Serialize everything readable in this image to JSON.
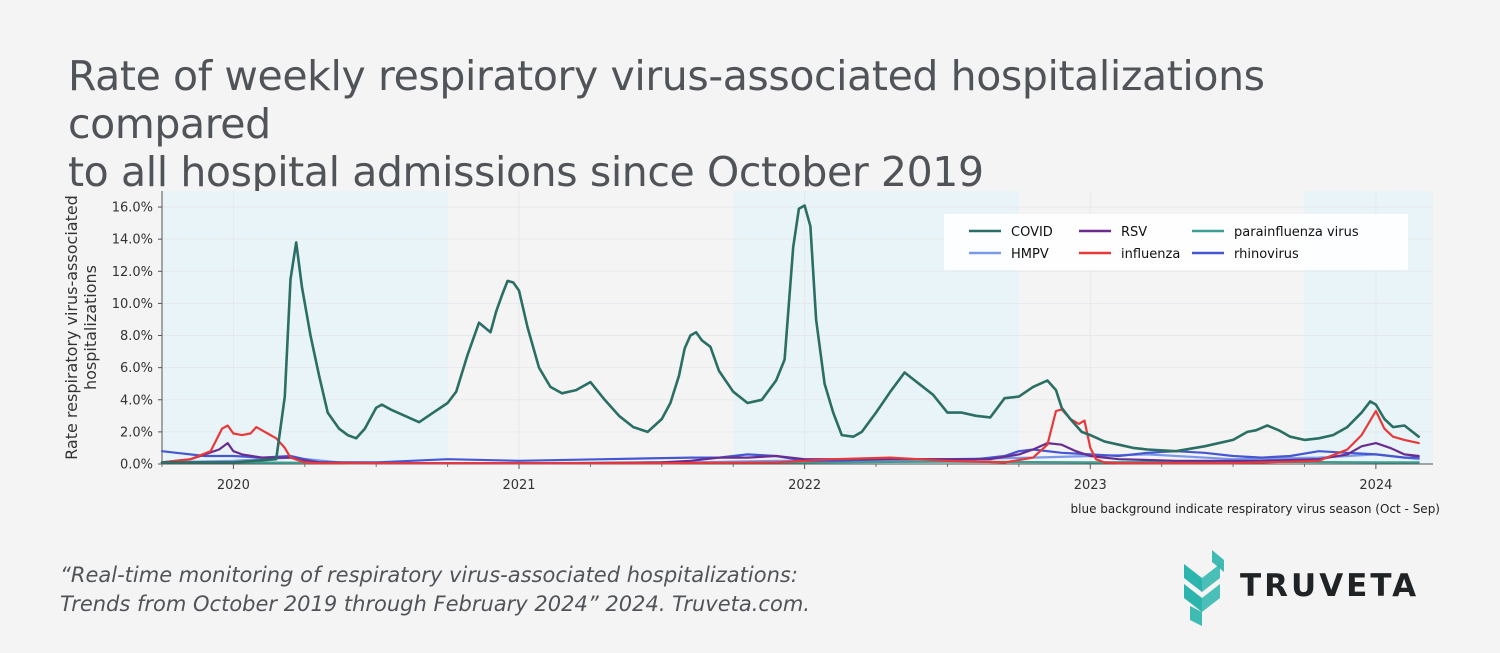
{
  "title": {
    "line1": "Rate of weekly respiratory virus-associated hospitalizations compared",
    "line2": "to all hospital admissions since October 2019"
  },
  "citation": {
    "line1": "“Real-time monitoring of respiratory virus-associated hospitalizations:",
    "line2": "Trends from October 2019 through February 2024” 2024. Truveta.com."
  },
  "logo": {
    "text": "TRUVETA",
    "color": "#2bb5ad"
  },
  "chart_data": {
    "type": "line",
    "title": "Rate of weekly respiratory virus-associated hospitalizations compared to all hospital admissions since October 2019",
    "xlabel": "",
    "ylabel": "Rate respiratory virus-associated hospitalizations",
    "ylabel_lines": [
      "Rate respiratory virus-associated",
      "hospitalizations"
    ],
    "xlim": [
      2019.75,
      2024.2
    ],
    "ylim": [
      0,
      17
    ],
    "x_ticks": [
      2020,
      2021,
      2022,
      2023,
      2024
    ],
    "x_tick_labels": [
      "2020",
      "2021",
      "2022",
      "2023",
      "2024"
    ],
    "y_ticks": [
      0,
      2,
      4,
      6,
      8,
      10,
      12,
      14,
      16
    ],
    "y_tick_labels": [
      "0.0%",
      "2.0%",
      "4.0%",
      "6.0%",
      "8.0%",
      "10.0%",
      "12.0%",
      "14.0%",
      "16.0%"
    ],
    "grid": true,
    "season_shading": [
      [
        2019.75,
        2020.75
      ],
      [
        2021.75,
        2022.75
      ],
      [
        2023.75,
        2024.2
      ]
    ],
    "season_color": "#e9f4f8",
    "season_note": "blue background indicate respiratory virus season (Oct - Sep)",
    "legend_position": "top-right",
    "series": [
      {
        "name": "COVID",
        "color": "#2a6e64",
        "x": [
          2019.75,
          2020.0,
          2020.15,
          2020.18,
          2020.2,
          2020.22,
          2020.24,
          2020.27,
          2020.3,
          2020.33,
          2020.37,
          2020.4,
          2020.43,
          2020.46,
          2020.5,
          2020.52,
          2020.55,
          2020.6,
          2020.65,
          2020.7,
          2020.75,
          2020.78,
          2020.82,
          2020.86,
          2020.9,
          2020.92,
          2020.94,
          2020.96,
          2020.98,
          2021.0,
          2021.03,
          2021.07,
          2021.11,
          2021.15,
          2021.2,
          2021.25,
          2021.3,
          2021.35,
          2021.4,
          2021.45,
          2021.5,
          2021.53,
          2021.56,
          2021.58,
          2021.6,
          2021.62,
          2021.64,
          2021.67,
          2021.7,
          2021.75,
          2021.8,
          2021.85,
          2021.9,
          2021.93,
          2021.96,
          2021.98,
          2022.0,
          2022.02,
          2022.04,
          2022.07,
          2022.1,
          2022.13,
          2022.17,
          2022.2,
          2022.25,
          2022.3,
          2022.35,
          2022.4,
          2022.45,
          2022.5,
          2022.55,
          2022.6,
          2022.65,
          2022.7,
          2022.75,
          2022.8,
          2022.85,
          2022.88,
          2022.9,
          2022.93,
          2022.95,
          2022.97,
          2023.0,
          2023.05,
          2023.1,
          2023.15,
          2023.2,
          2023.3,
          2023.4,
          2023.5,
          2023.55,
          2023.58,
          2023.62,
          2023.66,
          2023.7,
          2023.75,
          2023.8,
          2023.85,
          2023.9,
          2023.95,
          2023.98,
          2024.0,
          2024.03,
          2024.06,
          2024.1,
          2024.15
        ],
        "y": [
          0.1,
          0.1,
          0.3,
          4.2,
          11.5,
          13.8,
          11.0,
          8.0,
          5.5,
          3.2,
          2.2,
          1.8,
          1.6,
          2.2,
          3.5,
          3.7,
          3.4,
          3.0,
          2.6,
          3.2,
          3.8,
          4.5,
          6.8,
          8.8,
          8.2,
          9.5,
          10.5,
          11.4,
          11.3,
          10.8,
          8.5,
          6.0,
          4.8,
          4.4,
          4.6,
          5.1,
          4.0,
          3.0,
          2.3,
          2.0,
          2.8,
          3.8,
          5.5,
          7.2,
          8.0,
          8.2,
          7.7,
          7.3,
          5.8,
          4.5,
          3.8,
          4.0,
          5.2,
          6.5,
          13.5,
          15.9,
          16.1,
          14.8,
          9.0,
          5.0,
          3.2,
          1.8,
          1.7,
          2.0,
          3.2,
          4.5,
          5.7,
          5.0,
          4.3,
          3.2,
          3.2,
          3.0,
          2.9,
          4.1,
          4.2,
          4.8,
          5.2,
          4.6,
          3.5,
          2.8,
          2.4,
          2.0,
          1.8,
          1.4,
          1.2,
          1.0,
          0.9,
          0.8,
          1.1,
          1.5,
          2.0,
          2.1,
          2.4,
          2.1,
          1.7,
          1.5,
          1.6,
          1.8,
          2.3,
          3.2,
          3.9,
          3.7,
          2.8,
          2.3,
          2.4,
          1.7
        ]
      },
      {
        "name": "HMPV",
        "color": "#7b99ea",
        "x": [
          2019.75,
          2020.0,
          2020.2,
          2020.4,
          2020.8,
          2021.2,
          2021.6,
          2021.9,
          2022.0,
          2022.2,
          2022.5,
          2022.8,
          2023.0,
          2023.2,
          2023.5,
          2023.8,
          2024.0,
          2024.15
        ],
        "y": [
          0.1,
          0.2,
          0.4,
          0.05,
          0.05,
          0.05,
          0.1,
          0.2,
          0.2,
          0.25,
          0.3,
          0.4,
          0.5,
          0.6,
          0.3,
          0.4,
          0.6,
          0.3
        ]
      },
      {
        "name": "RSV",
        "color": "#6a2c8f",
        "x": [
          2019.75,
          2019.85,
          2019.9,
          2019.95,
          2019.98,
          2020.0,
          2020.03,
          2020.1,
          2020.2,
          2020.25,
          2020.3,
          2020.5,
          2020.8,
          2021.2,
          2021.5,
          2021.6,
          2021.7,
          2021.8,
          2021.9,
          2022.0,
          2022.3,
          2022.5,
          2022.65,
          2022.75,
          2022.8,
          2022.85,
          2022.9,
          2022.95,
          2023.0,
          2023.05,
          2023.1,
          2023.3,
          2023.6,
          2023.8,
          2023.9,
          2023.95,
          2024.0,
          2024.05,
          2024.1,
          2024.15
        ],
        "y": [
          0.1,
          0.3,
          0.6,
          0.9,
          1.3,
          0.8,
          0.6,
          0.4,
          0.4,
          0.2,
          0.1,
          0.05,
          0.05,
          0.05,
          0.1,
          0.2,
          0.4,
          0.4,
          0.5,
          0.3,
          0.3,
          0.3,
          0.3,
          0.6,
          0.9,
          1.3,
          1.2,
          0.8,
          0.5,
          0.4,
          0.3,
          0.2,
          0.2,
          0.3,
          0.6,
          1.1,
          1.3,
          1.0,
          0.6,
          0.5
        ]
      },
      {
        "name": "influenza",
        "color": "#e8393a",
        "x": [
          2019.75,
          2019.85,
          2019.92,
          2019.96,
          2019.98,
          2020.0,
          2020.03,
          2020.06,
          2020.08,
          2020.1,
          2020.12,
          2020.15,
          2020.18,
          2020.2,
          2020.25,
          2020.3,
          2021.0,
          2021.5,
          2021.9,
          2022.1,
          2022.3,
          2022.5,
          2022.7,
          2022.8,
          2022.85,
          2022.88,
          2022.9,
          2022.93,
          2022.96,
          2022.98,
          2023.0,
          2023.02,
          2023.05,
          2023.1,
          2023.2,
          2023.5,
          2023.8,
          2023.9,
          2023.95,
          2024.0,
          2024.03,
          2024.06,
          2024.1,
          2024.15
        ],
        "y": [
          0.1,
          0.3,
          0.8,
          2.2,
          2.4,
          1.9,
          1.8,
          1.9,
          2.3,
          2.1,
          1.9,
          1.6,
          1.0,
          0.4,
          0.1,
          0.05,
          0.05,
          0.05,
          0.1,
          0.3,
          0.4,
          0.2,
          0.1,
          0.4,
          1.2,
          3.3,
          3.4,
          2.8,
          2.5,
          2.7,
          1.0,
          0.3,
          0.1,
          0.05,
          0.05,
          0.05,
          0.2,
          0.9,
          1.8,
          3.3,
          2.2,
          1.7,
          1.5,
          1.3
        ]
      },
      {
        "name": "parainfluenza virus",
        "color": "#3a9e92",
        "x": [
          2019.75,
          2020.0,
          2020.5,
          2021.0,
          2021.5,
          2022.0,
          2022.5,
          2023.0,
          2023.5,
          2024.0,
          2024.15
        ],
        "y": [
          0.1,
          0.1,
          0.05,
          0.05,
          0.1,
          0.1,
          0.15,
          0.1,
          0.15,
          0.1,
          0.1
        ]
      },
      {
        "name": "rhinovirus",
        "color": "#4657d0",
        "x": [
          2019.75,
          2019.8,
          2019.9,
          2020.0,
          2020.1,
          2020.2,
          2020.3,
          2020.5,
          2020.75,
          2021.0,
          2021.3,
          2021.6,
          2021.7,
          2021.8,
          2021.9,
          2022.0,
          2022.1,
          2022.3,
          2022.5,
          2022.6,
          2022.7,
          2022.75,
          2022.8,
          2022.9,
          2023.0,
          2023.1,
          2023.2,
          2023.3,
          2023.4,
          2023.5,
          2023.6,
          2023.7,
          2023.8,
          2023.9,
          2024.0,
          2024.1,
          2024.15
        ],
        "y": [
          0.8,
          0.7,
          0.5,
          0.5,
          0.4,
          0.5,
          0.1,
          0.1,
          0.3,
          0.2,
          0.3,
          0.4,
          0.4,
          0.6,
          0.5,
          0.2,
          0.2,
          0.3,
          0.3,
          0.3,
          0.5,
          0.8,
          0.9,
          0.7,
          0.6,
          0.5,
          0.7,
          0.8,
          0.7,
          0.5,
          0.4,
          0.5,
          0.8,
          0.7,
          0.6,
          0.4,
          0.4
        ]
      }
    ]
  }
}
